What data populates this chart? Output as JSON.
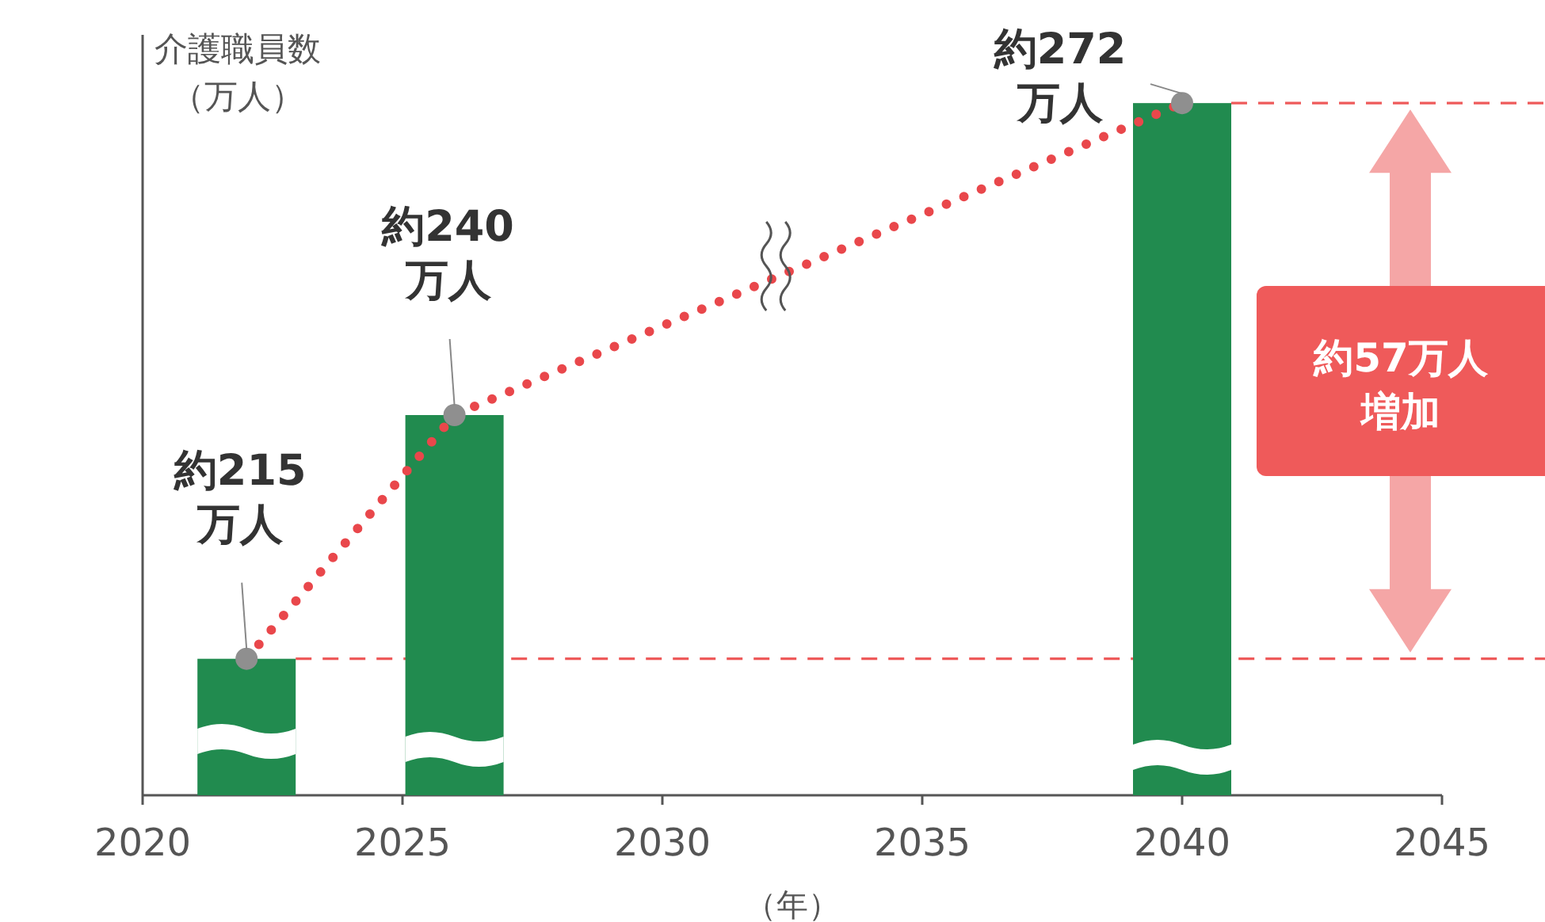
{
  "chart_data": {
    "type": "bar",
    "ylabel": "介護職員数（万人）",
    "xlabel": "（年）",
    "xlim": [
      2020,
      2045
    ],
    "xticks": [
      2020,
      2025,
      2030,
      2035,
      2040,
      2045
    ],
    "ylim": [
      201,
      279
    ],
    "tick_labels": "x",
    "series": [
      {
        "color": "#218b4f",
        "x": [
          2022,
          2026,
          2040
        ],
        "values": [
          215,
          240,
          272
        ],
        "value_labels": [
          "約215万人",
          "約240万人",
          "約272万人"
        ]
      },
      {
        "type": "line",
        "color": "#e9474b",
        "line_style": "dotted",
        "x": [
          2022,
          2026,
          2040
        ],
        "values": [
          215,
          240,
          272
        ]
      },
      {
        "type": "scatter",
        "color": "#8f8f8f",
        "marker": "circle",
        "x": [
          2022,
          2026,
          2040
        ],
        "values": [
          215,
          240,
          272
        ]
      }
    ],
    "ref_lines": [
      {
        "axis": "y",
        "value": 215,
        "color": "#ee5a5a",
        "line_style": "dashed"
      },
      {
        "axis": "y",
        "value": 272,
        "color": "#ee5a5a",
        "line_style": "dashed"
      }
    ],
    "annotations": [
      "約57万人増加"
    ]
  }
}
